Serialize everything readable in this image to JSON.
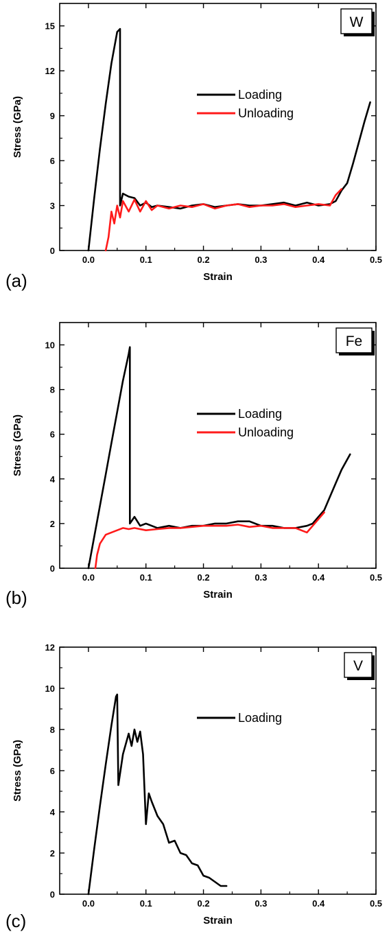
{
  "figure_panels": [
    "(a)",
    "(b)",
    "(c)"
  ],
  "colors": {
    "loading": "#000000",
    "unloading": "#ff1a1a",
    "axis": "#000000",
    "background": "#ffffff"
  },
  "chart_data": [
    {
      "type": "line",
      "panel_label": "(a)",
      "material_label": "W",
      "xlabel": "Strain",
      "ylabel": "Stress (GPa)",
      "xlim": [
        -0.05,
        0.5
      ],
      "ylim": [
        0,
        16.5
      ],
      "xticks": [
        0.0,
        0.1,
        0.2,
        0.3,
        0.4,
        0.5
      ],
      "xtick_labels": [
        "0.0",
        "0.1",
        "0.2",
        "0.3",
        "0.4",
        "0.5"
      ],
      "yticks": [
        0,
        3,
        6,
        9,
        12,
        15
      ],
      "ytick_labels": [
        "0",
        "3",
        "6",
        "9",
        "12",
        "15"
      ],
      "grid": false,
      "legend_position": "center-right",
      "series": [
        {
          "name": "Loading",
          "color": "#000000",
          "x": [
            0.0,
            0.01,
            0.02,
            0.03,
            0.04,
            0.05,
            0.055,
            0.055,
            0.06,
            0.07,
            0.08,
            0.09,
            0.1,
            0.11,
            0.12,
            0.14,
            0.16,
            0.18,
            0.2,
            0.22,
            0.24,
            0.26,
            0.28,
            0.3,
            0.32,
            0.34,
            0.36,
            0.38,
            0.4,
            0.42,
            0.43,
            0.44,
            0.45,
            0.46,
            0.47,
            0.48,
            0.49
          ],
          "y": [
            0,
            3.5,
            6.8,
            9.8,
            12.5,
            14.6,
            14.8,
            3.0,
            3.8,
            3.6,
            3.5,
            3.0,
            3.2,
            2.9,
            3.0,
            2.9,
            2.8,
            3.0,
            3.1,
            2.9,
            3.0,
            3.1,
            3.0,
            3.0,
            3.1,
            3.2,
            3.0,
            3.2,
            3.0,
            3.1,
            3.3,
            4.0,
            4.5,
            5.8,
            7.2,
            8.6,
            9.9
          ]
        },
        {
          "name": "Unloading",
          "color": "#ff1a1a",
          "x": [
            0.03,
            0.035,
            0.04,
            0.045,
            0.05,
            0.055,
            0.06,
            0.07,
            0.08,
            0.09,
            0.1,
            0.11,
            0.12,
            0.14,
            0.16,
            0.18,
            0.2,
            0.22,
            0.24,
            0.26,
            0.28,
            0.3,
            0.32,
            0.34,
            0.36,
            0.38,
            0.4,
            0.42,
            0.43,
            0.44
          ],
          "y": [
            0,
            0.9,
            2.6,
            1.8,
            3.0,
            2.2,
            3.3,
            2.6,
            3.4,
            2.6,
            3.3,
            2.7,
            3.0,
            2.8,
            3.0,
            2.9,
            3.1,
            2.8,
            3.0,
            3.1,
            2.9,
            3.0,
            3.0,
            3.1,
            2.9,
            3.0,
            3.1,
            3.0,
            3.7,
            4.1
          ]
        }
      ]
    },
    {
      "type": "line",
      "panel_label": "(b)",
      "material_label": "Fe",
      "xlabel": "Strain",
      "ylabel": "Stress (GPa)",
      "xlim": [
        -0.05,
        0.5
      ],
      "ylim": [
        0,
        11
      ],
      "xticks": [
        0.0,
        0.1,
        0.2,
        0.3,
        0.4,
        0.5
      ],
      "xtick_labels": [
        "0.0",
        "0.1",
        "0.2",
        "0.3",
        "0.4",
        "0.5"
      ],
      "yticks": [
        0,
        2,
        4,
        6,
        8,
        10
      ],
      "ytick_labels": [
        "0",
        "2",
        "4",
        "6",
        "8",
        "10"
      ],
      "grid": false,
      "legend_position": "center-right",
      "series": [
        {
          "name": "Loading",
          "color": "#000000",
          "x": [
            0.0,
            0.01,
            0.02,
            0.03,
            0.04,
            0.05,
            0.06,
            0.07,
            0.072,
            0.072,
            0.08,
            0.09,
            0.1,
            0.12,
            0.14,
            0.16,
            0.18,
            0.2,
            0.22,
            0.24,
            0.26,
            0.28,
            0.3,
            0.32,
            0.34,
            0.36,
            0.38,
            0.39,
            0.4,
            0.41,
            0.42,
            0.43,
            0.44,
            0.455
          ],
          "y": [
            0,
            1.4,
            2.8,
            4.2,
            5.6,
            7.0,
            8.4,
            9.6,
            9.9,
            2.0,
            2.3,
            1.9,
            2.0,
            1.8,
            1.9,
            1.8,
            1.9,
            1.9,
            2.0,
            2.0,
            2.1,
            2.1,
            1.9,
            1.9,
            1.8,
            1.8,
            1.9,
            2.0,
            2.3,
            2.6,
            3.2,
            3.8,
            4.4,
            5.1
          ]
        },
        {
          "name": "Unloading",
          "color": "#ff1a1a",
          "x": [
            0.012,
            0.015,
            0.02,
            0.025,
            0.03,
            0.04,
            0.05,
            0.06,
            0.07,
            0.08,
            0.1,
            0.12,
            0.14,
            0.16,
            0.18,
            0.2,
            0.22,
            0.24,
            0.26,
            0.28,
            0.3,
            0.32,
            0.34,
            0.36,
            0.38,
            0.39,
            0.4,
            0.41
          ],
          "y": [
            0,
            0.6,
            1.1,
            1.3,
            1.5,
            1.6,
            1.7,
            1.8,
            1.75,
            1.8,
            1.7,
            1.75,
            1.8,
            1.8,
            1.85,
            1.9,
            1.9,
            1.9,
            1.95,
            1.85,
            1.9,
            1.8,
            1.8,
            1.8,
            1.6,
            1.9,
            2.2,
            2.5
          ]
        }
      ]
    },
    {
      "type": "line",
      "panel_label": "(c)",
      "material_label": "V",
      "xlabel": "Strain",
      "ylabel": "Stress (GPa)",
      "xlim": [
        -0.05,
        0.5
      ],
      "ylim": [
        0,
        12
      ],
      "xticks": [
        0.0,
        0.1,
        0.2,
        0.3,
        0.4,
        0.5
      ],
      "xtick_labels": [
        "0.0",
        "0.1",
        "0.2",
        "0.3",
        "0.4",
        "0.5"
      ],
      "yticks": [
        0,
        2,
        4,
        6,
        8,
        10,
        12
      ],
      "ytick_labels": [
        "0",
        "2",
        "4",
        "6",
        "8",
        "10",
        "12"
      ],
      "grid": false,
      "legend_position": "center-right",
      "series": [
        {
          "name": "Loading",
          "color": "#000000",
          "x": [
            0.0,
            0.01,
            0.02,
            0.03,
            0.04,
            0.048,
            0.05,
            0.052,
            0.06,
            0.07,
            0.075,
            0.08,
            0.085,
            0.09,
            0.095,
            0.1,
            0.105,
            0.11,
            0.12,
            0.13,
            0.14,
            0.15,
            0.16,
            0.17,
            0.18,
            0.19,
            0.2,
            0.21,
            0.22,
            0.23,
            0.24
          ],
          "y": [
            0,
            2.2,
            4.3,
            6.3,
            8.2,
            9.6,
            9.7,
            5.3,
            6.8,
            7.8,
            7.2,
            8.0,
            7.4,
            7.9,
            6.8,
            3.4,
            4.9,
            4.5,
            3.8,
            3.4,
            2.5,
            2.6,
            2.0,
            1.9,
            1.5,
            1.4,
            0.9,
            0.8,
            0.6,
            0.4,
            0.4
          ]
        }
      ]
    }
  ]
}
